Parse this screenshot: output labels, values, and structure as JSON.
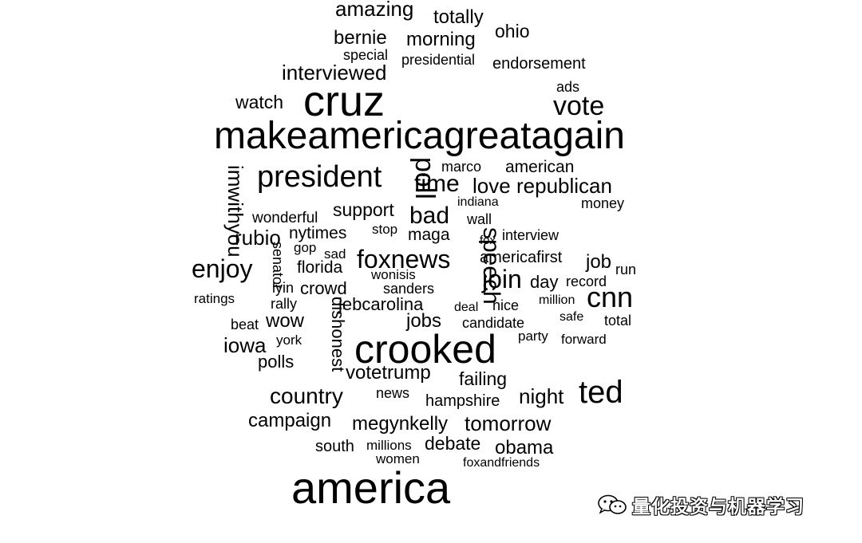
{
  "words": [
    {
      "text": "amazing",
      "size": "large"
    },
    {
      "text": "totally",
      "size": "medium"
    },
    {
      "text": "ohio",
      "size": "medium"
    },
    {
      "text": "bernie",
      "size": "medium"
    },
    {
      "text": "morning",
      "size": "medium"
    },
    {
      "text": "special",
      "size": "small"
    },
    {
      "text": "presidential",
      "size": "small"
    },
    {
      "text": "endorsement",
      "size": "small"
    },
    {
      "text": "interviewed",
      "size": "medium"
    },
    {
      "text": "ads",
      "size": "small"
    },
    {
      "text": "watch",
      "size": "medium"
    },
    {
      "text": "cruz",
      "size": "xlarge"
    },
    {
      "text": "vote",
      "size": "large"
    },
    {
      "text": "makeamericagreatagain",
      "size": "xxlarge"
    },
    {
      "text": "president",
      "size": "xlarge"
    },
    {
      "text": "poll",
      "size": "large"
    },
    {
      "text": "marco",
      "size": "small"
    },
    {
      "text": "american",
      "size": "medium"
    },
    {
      "text": "time",
      "size": "large"
    },
    {
      "text": "love",
      "size": "medium"
    },
    {
      "text": "republican",
      "size": "medium"
    },
    {
      "text": "imwithyou",
      "size": "medium"
    },
    {
      "text": "indiana",
      "size": "small"
    },
    {
      "text": "money",
      "size": "small"
    },
    {
      "text": "support",
      "size": "medium"
    },
    {
      "text": "bad",
      "size": "large"
    },
    {
      "text": "wonderful",
      "size": "small"
    },
    {
      "text": "wall",
      "size": "small"
    },
    {
      "text": "rubio",
      "size": "medium"
    },
    {
      "text": "nytimes",
      "size": "medium"
    },
    {
      "text": "stop",
      "size": "small"
    },
    {
      "text": "maga",
      "size": "medium"
    },
    {
      "text": "speech",
      "size": "large"
    },
    {
      "text": "interview",
      "size": "small"
    },
    {
      "text": "fox",
      "size": "small"
    },
    {
      "text": "gop",
      "size": "small"
    },
    {
      "text": "sad",
      "size": "small"
    },
    {
      "text": "foxnews",
      "size": "large"
    },
    {
      "text": "americafirst",
      "size": "medium"
    },
    {
      "text": "job",
      "size": "medium"
    },
    {
      "text": "enjoy",
      "size": "large"
    },
    {
      "text": "senator",
      "size": "small"
    },
    {
      "text": "florida",
      "size": "medium"
    },
    {
      "text": "wonisis",
      "size": "small"
    },
    {
      "text": "join",
      "size": "large"
    },
    {
      "text": "run",
      "size": "small"
    },
    {
      "text": "lyin",
      "size": "small"
    },
    {
      "text": "crowd",
      "size": "medium"
    },
    {
      "text": "sanders",
      "size": "small"
    },
    {
      "text": "day",
      "size": "medium"
    },
    {
      "text": "record",
      "size": "small"
    },
    {
      "text": "ratings",
      "size": "small"
    },
    {
      "text": "rally",
      "size": "small"
    },
    {
      "text": "jebcarolina",
      "size": "medium"
    },
    {
      "text": "nice",
      "size": "small"
    },
    {
      "text": "million",
      "size": "small"
    },
    {
      "text": "cnn",
      "size": "large"
    },
    {
      "text": "dishonest",
      "size": "medium"
    },
    {
      "text": "deal",
      "size": "small"
    },
    {
      "text": "beat",
      "size": "small"
    },
    {
      "text": "wow",
      "size": "medium"
    },
    {
      "text": "jobs",
      "size": "medium"
    },
    {
      "text": "candidate",
      "size": "small"
    },
    {
      "text": "safe",
      "size": "small"
    },
    {
      "text": "total",
      "size": "small"
    },
    {
      "text": "party",
      "size": "small"
    },
    {
      "text": "iowa",
      "size": "medium"
    },
    {
      "text": "york",
      "size": "small"
    },
    {
      "text": "crooked",
      "size": "xxlarge"
    },
    {
      "text": "forward",
      "size": "small"
    },
    {
      "text": "polls",
      "size": "medium"
    },
    {
      "text": "votetrump",
      "size": "medium"
    },
    {
      "text": "failing",
      "size": "medium"
    },
    {
      "text": "country",
      "size": "large"
    },
    {
      "text": "news",
      "size": "small"
    },
    {
      "text": "night",
      "size": "medium"
    },
    {
      "text": "ted",
      "size": "xlarge"
    },
    {
      "text": "hampshire",
      "size": "medium"
    },
    {
      "text": "campaign",
      "size": "medium"
    },
    {
      "text": "megynkelly",
      "size": "medium"
    },
    {
      "text": "tomorrow",
      "size": "medium"
    },
    {
      "text": "south",
      "size": "small"
    },
    {
      "text": "millions",
      "size": "small"
    },
    {
      "text": "debate",
      "size": "medium"
    },
    {
      "text": "obama",
      "size": "medium"
    },
    {
      "text": "women",
      "size": "small"
    },
    {
      "text": "foxandfriends",
      "size": "small"
    },
    {
      "text": "america",
      "size": "xxlarge"
    }
  ],
  "watermark": {
    "icon": "wechat-icon",
    "text": "量化投资与机器学习"
  }
}
